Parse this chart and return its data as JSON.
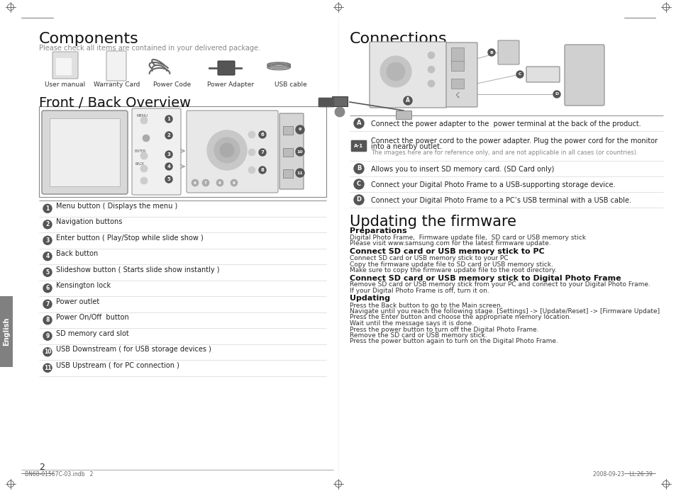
{
  "bg_color": "#ffffff",
  "page_width": 9.54,
  "page_height": 6.93,
  "components_title": "Components",
  "components_subtitle": "Please check all items are contained in your delivered package.",
  "components_items": [
    "User manual",
    "Warranty Card",
    "Power Code",
    "Power Adapter",
    "USB cable"
  ],
  "front_back_title": "Front / Back Overview",
  "numbered_items": [
    "Menu button ( Displays the menu )",
    "Navigation buttons",
    "Enter button ( Play/Stop while slide show )",
    "Back button",
    "Slideshow button ( Starts slide show instantly )",
    "Kensington lock",
    "Power outlet",
    "Power On/Off  button",
    "SD memory card slot",
    "USB Downstream ( for USB storage devices )",
    "USB Upstream ( for PC connection )"
  ],
  "connections_title": "Connections",
  "connection_items": [
    {
      "label": "A",
      "text1": "Connect the power adapter to the  power terminal at the back of the product.",
      "text2": ""
    },
    {
      "label": "A-1",
      "text1": "Connect the power cord to the power adapter. Plug the power cord for the monitor",
      "text2": "into a nearby outlet.",
      "text3": "The images here are for reference only, and are not applicable in all cases (or countries)."
    },
    {
      "label": "B",
      "text1": "Allows you to insert SD memory card. (SD Card only)",
      "text2": ""
    },
    {
      "label": "C",
      "text1": "Connect your Digital Photo Frame to a USB-supporting storage device.",
      "text2": ""
    },
    {
      "label": "D",
      "text1": "Connect your Digital Photo Frame to a PC’s USB terminal with a USB cable.",
      "text2": ""
    }
  ],
  "firmware_title": "Updating the firmware",
  "firmware_sections": [
    {
      "heading": "Preparations",
      "body": [
        "Digital Photo Frame,  Firmware update file,  SD card or USB memory stick",
        "Please visit www.samsung.com for the latest firmware update."
      ]
    },
    {
      "heading": "Connect SD card or USB memory stick to PC",
      "body": [
        "Connect SD card or USB memory stick to your PC",
        "Copy the firmware update file to SD card or USB memory stick.",
        "Make sure to copy the firmware update file to the root directory."
      ]
    },
    {
      "heading": "Connect SD card or USB memory stick to Digital Photo Frame",
      "body": [
        "Remove SD card or USB memory stick from your PC and connect to your Digital Photo Frame.",
        "If your Digital Photo Frame is off, turn it on."
      ]
    },
    {
      "heading": "Updating",
      "body": [
        "Press the Back button to go to the Main screen.",
        "Navigate until you reach the following stage. [Settings] -> [Update/Reset] -> [Firmware Update]",
        "Press the Enter button and choose the appropriate memory location.",
        "Wait until the message says it is done.",
        "Press the power button to turn off the Digital Photo Frame.",
        "Remove the SD card or USB memory stick.",
        "Press the power button again to turn on the Digital Photo Frame."
      ]
    }
  ],
  "footer_left": "BN68-01567C-03.indb   2",
  "footer_right": "2008-09-23   ĿĿ:26:39",
  "page_number": "2",
  "sidebar_text": "English",
  "sidebar_color": "#808080"
}
